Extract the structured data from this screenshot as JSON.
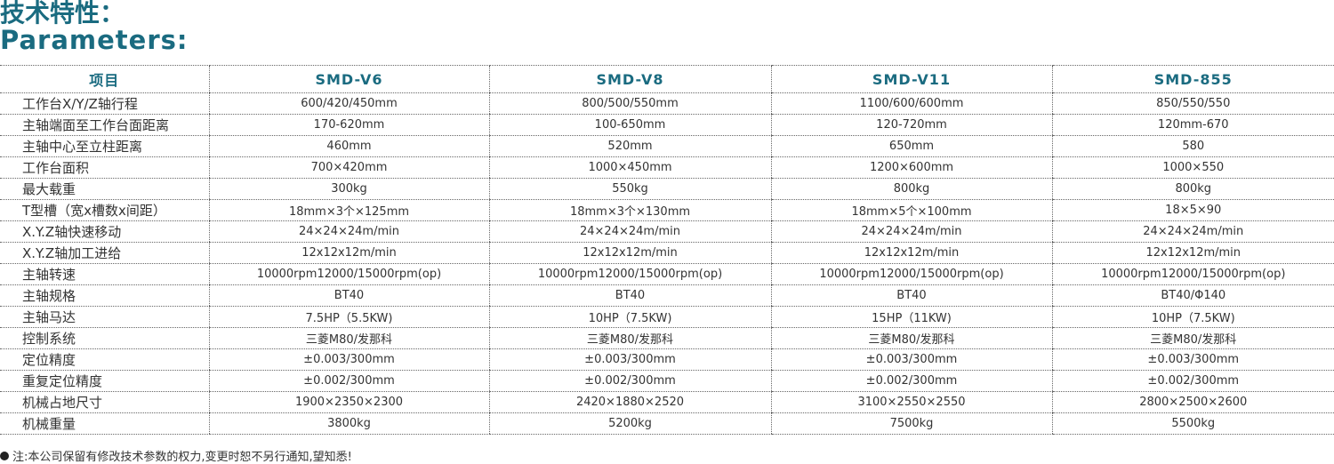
{
  "header": {
    "title_cn": "技术特性：",
    "title_en": "Parameters:"
  },
  "table": {
    "columns": [
      "项目",
      "SMD-V6",
      "SMD-V8",
      "SMD-V11",
      "SMD-855"
    ],
    "rows": [
      [
        "工作台X/Y/Z轴行程",
        "600/420/450mm",
        "800/500/550mm",
        "1100/600/600mm",
        "850/550/550"
      ],
      [
        "主轴端面至工作台面距离",
        "170-620mm",
        "100-650mm",
        "120-720mm",
        "120mm-670"
      ],
      [
        "主轴中心至立柱距离",
        "460mm",
        "520mm",
        "650mm",
        "580"
      ],
      [
        "工作台面积",
        "700×420mm",
        "1000×450mm",
        "1200×600mm",
        "1000×550"
      ],
      [
        "最大载重",
        "300kg",
        "550kg",
        "800kg",
        "800kg"
      ],
      [
        "T型槽（宽x槽数x间距）",
        "18mm×3个×125mm",
        "18mm×3个×130mm",
        "18mm×5个×100mm",
        "18×5×90"
      ],
      [
        "X.Y.Z轴快速移动",
        "24×24×24m/min",
        "24×24×24m/min",
        "24×24×24m/min",
        "24×24×24m/min"
      ],
      [
        "X.Y.Z轴加工进给",
        "12x12x12m/min",
        "12x12x12m/min",
        "12x12x12m/min",
        "12x12x12m/min"
      ],
      [
        "主轴转速",
        "10000rpm12000/15000rpm(op)",
        "10000rpm12000/15000rpm(op)",
        "10000rpm12000/15000rpm(op)",
        "10000rpm12000/15000rpm(op)"
      ],
      [
        "主轴规格",
        "BT40",
        "BT40",
        "BT40",
        "BT40/Φ140"
      ],
      [
        "主轴马达",
        "7.5HP（5.5KW)",
        "10HP（7.5KW)",
        "15HP（11KW)",
        "10HP（7.5KW)"
      ],
      [
        "控制系统",
        "三菱M80/发那科",
        "三菱M80/发那科",
        "三菱M80/发那科",
        "三菱M80/发那科"
      ],
      [
        "定位精度",
        "±0.003/300mm",
        "±0.003/300mm",
        "±0.003/300mm",
        "±0.003/300mm"
      ],
      [
        "重复定位精度",
        "±0.002/300mm",
        "±0.002/300mm",
        "±0.002/300mm",
        "±0.002/300mm"
      ],
      [
        "机械占地尺寸",
        "1900×2350×2300",
        "2420×1880×2520",
        "3100×2550×2550",
        "2800×2500×2600"
      ],
      [
        "机械重量",
        "3800kg",
        "5200kg",
        "7500kg",
        "5500kg"
      ]
    ]
  },
  "footnote": "注:本公司保留有修改技术参数的权力,变更时恕不另行通知,望知悉!"
}
